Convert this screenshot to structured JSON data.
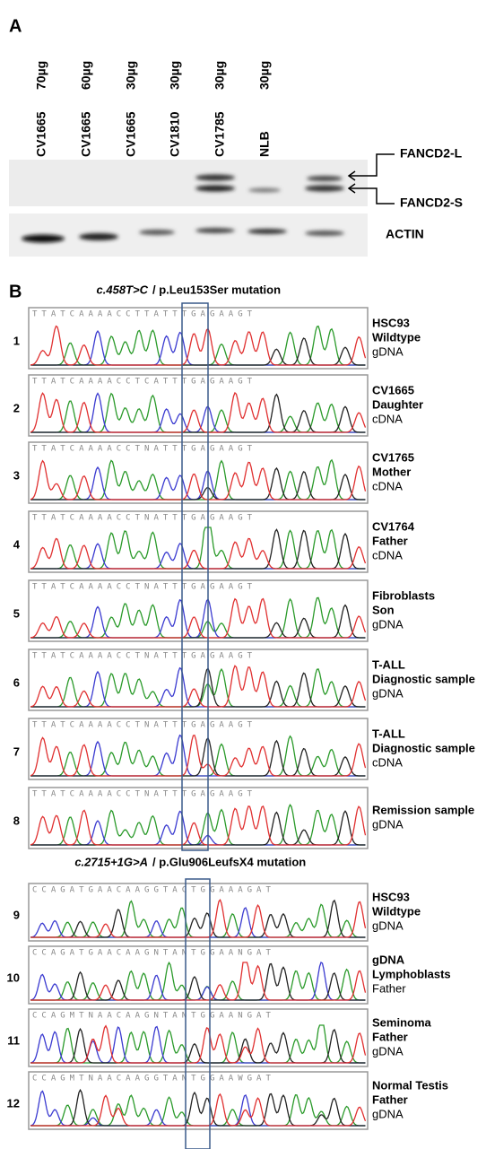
{
  "panel_a": {
    "label": "A",
    "lanes": [
      {
        "name": "CV1665",
        "amount": "70µg"
      },
      {
        "name": "CV1665",
        "amount": "60µg"
      },
      {
        "name": "CV1665",
        "amount": "30µg"
      },
      {
        "name": "CV1810",
        "amount": "30µg"
      },
      {
        "name": "CV1785",
        "amount": "30µg"
      },
      {
        "name": "NLB",
        "amount": "30µg"
      }
    ],
    "band_labels": [
      "FANCD2-L",
      "FANCD2-S",
      "ACTIN"
    ]
  },
  "panel_b": {
    "label": "B",
    "sections": [
      {
        "title_mutation": "c.458T>C",
        "title_protein": "/ p.Leu153Ser mutation",
        "rows": [
          {
            "number": "1",
            "sequence": "TTATCAAAACCTTATTTGAGAAGT",
            "label": [
              "HSC93",
              "Wildtype",
              "gDNA"
            ]
          },
          {
            "number": "2",
            "sequence": "TTATCAAAACCTCATTTGAGAAGT",
            "label": [
              "CV1665",
              "Daughter",
              "cDNA"
            ]
          },
          {
            "number": "3",
            "sequence": "TTATCAAAACCTNATTTGAGAAGT",
            "label": [
              "CV1765",
              "Mother",
              "cDNA"
            ]
          },
          {
            "number": "4",
            "sequence": "TTATCAAAACCTNATTTGAGAAGT",
            "label": [
              "CV1764",
              "Father",
              "cDNA"
            ]
          },
          {
            "number": "5",
            "sequence": "TTATCAAAACCTNATTTGAGAAGT",
            "label": [
              "Fibroblasts",
              "Son",
              "gDNA"
            ]
          },
          {
            "number": "6",
            "sequence": "TTATCAAAACCTNATTTGAGAAGT",
            "label": [
              "T-ALL",
              "Diagnostic sample",
              "gDNA"
            ]
          },
          {
            "number": "7",
            "sequence": "TTATCAAAACCTNATTTGAGAAGT",
            "label": [
              "T-ALL",
              "Diagnostic sample",
              "cDNA"
            ]
          },
          {
            "number": "8",
            "sequence": "TTATCAAAACCTNATTTGAGAAGT",
            "label": [
              "Remission sample",
              "gDNA"
            ]
          }
        ]
      },
      {
        "title_mutation": "c.2715+1G>A",
        "title_protein": "/ p.Glu906LeufsX4 mutation",
        "rows": [
          {
            "number": "9",
            "sequence": "CCAGATGAACAAGGTACTGGAAAGAT",
            "label": [
              "HSC93",
              "Wildtype",
              "gDNA"
            ]
          },
          {
            "number": "10",
            "sequence": "CCAGATGAACAAGNTANTGGAANGAT",
            "label": [
              "gDNA",
              "Lymphoblasts",
              "Father"
            ]
          },
          {
            "number": "11",
            "sequence": "CCAGMTNAACAAGNTANTGGAANGAT",
            "label": [
              "Seminoma",
              "Father",
              "gDNA"
            ]
          },
          {
            "number": "12",
            "sequence": "CCAGMTNAACAAGGTANTGGAAWGAT",
            "label": [
              "Normal Testis",
              "Father",
              "gDNA"
            ]
          }
        ]
      }
    ]
  }
}
